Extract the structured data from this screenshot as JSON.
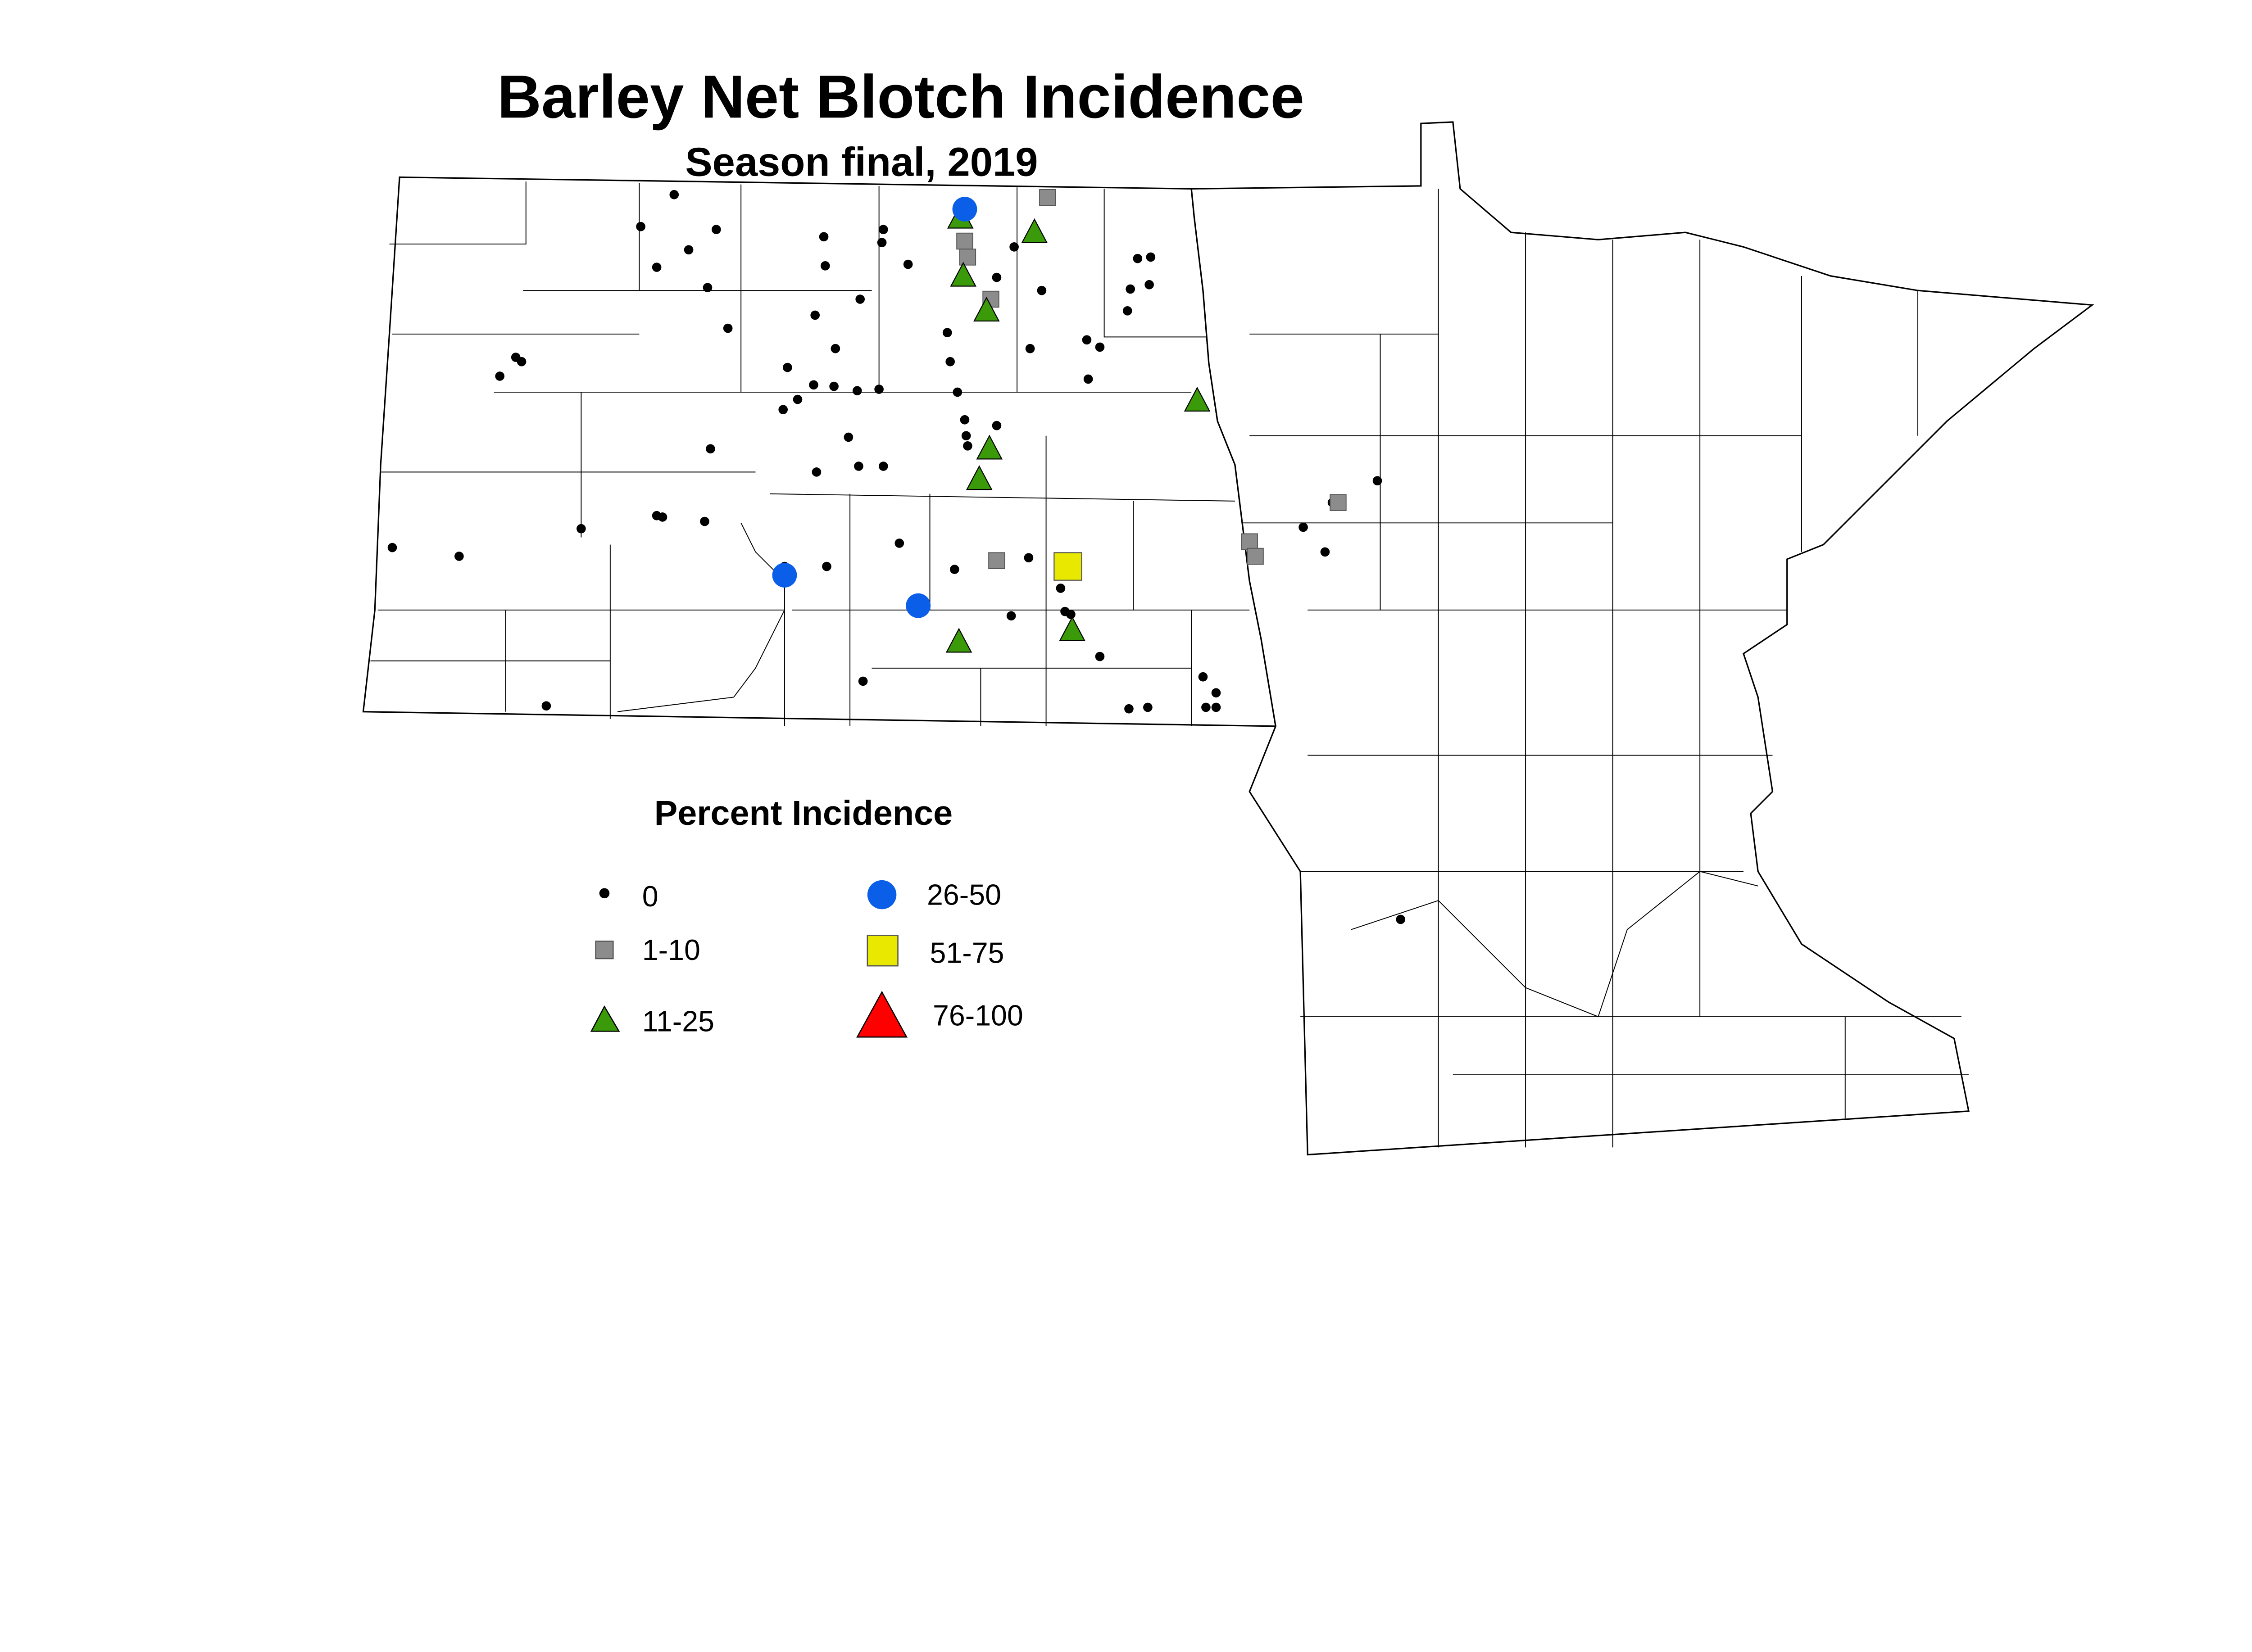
{
  "title": "Barley Net Blotch Incidence",
  "subtitle": "Season final, 2019",
  "legend": {
    "title": "Percent Incidence",
    "items": [
      {
        "label": "0",
        "shape": "dot",
        "color": "#000000"
      },
      {
        "label": "1-10",
        "shape": "square",
        "color": "#8c8c8c"
      },
      {
        "label": "11-25",
        "shape": "triangle",
        "color": "#3a9a0a"
      },
      {
        "label": "26-50",
        "shape": "circle",
        "color": "#0a5ee8"
      },
      {
        "label": "51-75",
        "shape": "square",
        "color": "#e8e800"
      },
      {
        "label": "76-100",
        "shape": "triangle",
        "color": "#ff0000"
      }
    ]
  }
}
